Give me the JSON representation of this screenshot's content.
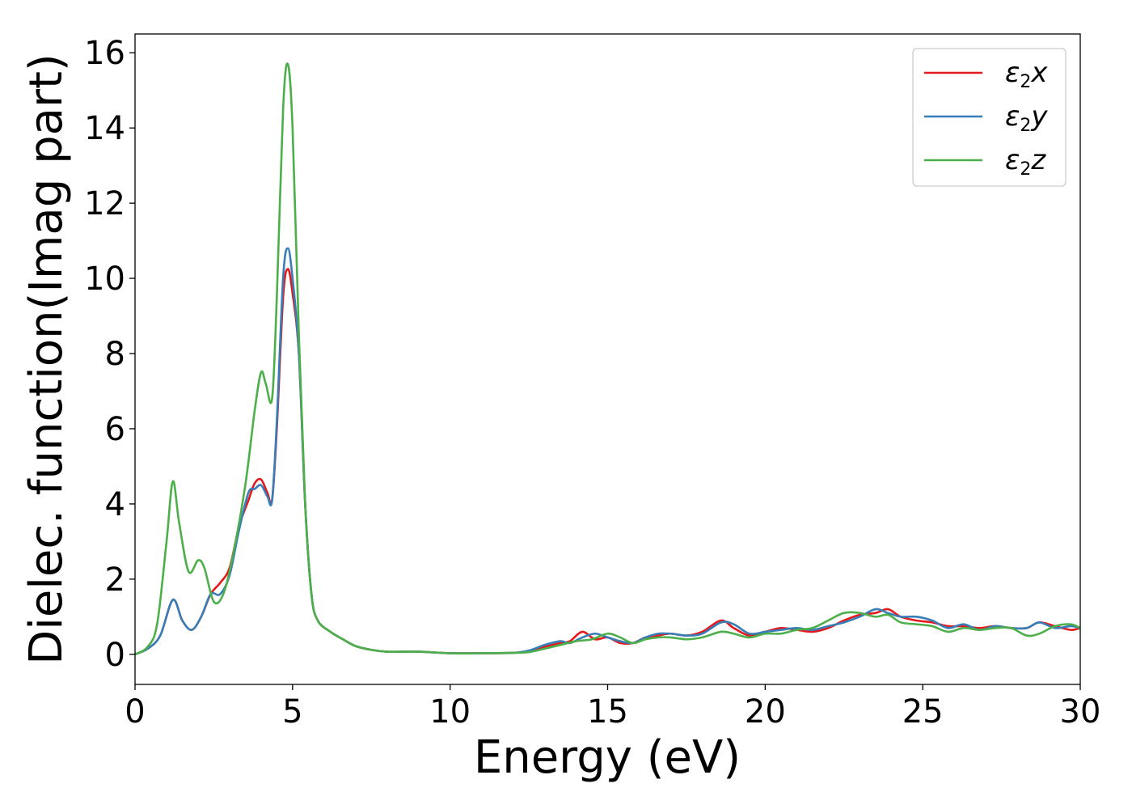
{
  "chart_data": {
    "type": "line",
    "xlabel": "Energy (eV)",
    "ylabel": "Dielec. function(Imag part)",
    "xlim": [
      0,
      30
    ],
    "ylim": [
      -0.8,
      16.5
    ],
    "xticks": [
      0,
      5,
      10,
      15,
      20,
      25,
      30
    ],
    "yticks": [
      0,
      2,
      4,
      6,
      8,
      10,
      12,
      14,
      16
    ],
    "grid": false,
    "legend_position": "top-right",
    "series": [
      {
        "name": "ε2x",
        "legend_symbol": "ε",
        "legend_sub": "2",
        "legend_var": "x",
        "color": "#e41a1c",
        "x": [
          0,
          0.4,
          0.8,
          1.2,
          1.5,
          1.8,
          2.1,
          2.4,
          2.7,
          3.0,
          3.3,
          3.6,
          3.8,
          4.0,
          4.2,
          4.35,
          4.5,
          4.7,
          4.85,
          5.0,
          5.2,
          5.4,
          5.6,
          5.8,
          6.2,
          6.6,
          7.0,
          7.5,
          8.0,
          9.0,
          10.0,
          11.0,
          12.0,
          12.5,
          13.0,
          13.5,
          13.8,
          14.2,
          14.6,
          15.0,
          15.4,
          15.8,
          16.2,
          16.6,
          17.0,
          17.5,
          18.0,
          18.6,
          19.0,
          19.5,
          20.0,
          20.5,
          21.0,
          21.5,
          22.0,
          22.5,
          23.0,
          23.5,
          23.9,
          24.3,
          24.8,
          25.3,
          25.8,
          26.3,
          26.8,
          27.3,
          27.8,
          28.3,
          28.7,
          29.2,
          29.7,
          30.0
        ],
        "y": [
          0.0,
          0.15,
          0.5,
          1.45,
          0.9,
          0.65,
          1.0,
          1.6,
          1.9,
          2.3,
          3.4,
          4.1,
          4.55,
          4.65,
          4.3,
          4.1,
          6.0,
          9.5,
          10.25,
          9.6,
          8.0,
          4.0,
          1.6,
          0.9,
          0.6,
          0.4,
          0.22,
          0.12,
          0.07,
          0.07,
          0.03,
          0.03,
          0.04,
          0.08,
          0.2,
          0.3,
          0.35,
          0.6,
          0.4,
          0.45,
          0.3,
          0.3,
          0.45,
          0.5,
          0.55,
          0.5,
          0.6,
          0.9,
          0.7,
          0.5,
          0.6,
          0.7,
          0.65,
          0.6,
          0.7,
          0.9,
          1.05,
          1.1,
          1.2,
          1.0,
          0.9,
          0.85,
          0.75,
          0.75,
          0.7,
          0.75,
          0.7,
          0.7,
          0.85,
          0.75,
          0.65,
          0.7
        ]
      },
      {
        "name": "ε2y",
        "legend_symbol": "ε",
        "legend_sub": "2",
        "legend_var": "y",
        "color": "#377eb8",
        "x": [
          0,
          0.4,
          0.8,
          1.2,
          1.5,
          1.8,
          2.1,
          2.4,
          2.7,
          3.0,
          3.3,
          3.6,
          3.8,
          4.0,
          4.2,
          4.35,
          4.5,
          4.7,
          4.85,
          5.0,
          5.2,
          5.4,
          5.6,
          5.8,
          6.2,
          6.6,
          7.0,
          7.5,
          8.0,
          9.0,
          10.0,
          11.0,
          12.0,
          12.5,
          13.0,
          13.5,
          13.8,
          14.2,
          14.6,
          15.0,
          15.4,
          15.8,
          16.2,
          16.6,
          17.0,
          17.5,
          18.0,
          18.6,
          19.0,
          19.5,
          20.0,
          20.5,
          21.0,
          21.5,
          22.0,
          22.5,
          23.0,
          23.5,
          23.9,
          24.3,
          24.8,
          25.3,
          25.8,
          26.3,
          26.8,
          27.3,
          27.8,
          28.3,
          28.7,
          29.2,
          29.7,
          30.0
        ],
        "y": [
          0.0,
          0.15,
          0.5,
          1.45,
          0.9,
          0.65,
          1.0,
          1.6,
          1.6,
          2.1,
          3.3,
          4.3,
          4.4,
          4.5,
          4.2,
          4.1,
          6.2,
          10.0,
          10.8,
          10.0,
          8.0,
          4.0,
          1.6,
          0.9,
          0.6,
          0.4,
          0.22,
          0.12,
          0.07,
          0.07,
          0.03,
          0.03,
          0.04,
          0.1,
          0.25,
          0.35,
          0.3,
          0.45,
          0.55,
          0.45,
          0.35,
          0.3,
          0.45,
          0.55,
          0.55,
          0.5,
          0.55,
          0.85,
          0.8,
          0.55,
          0.6,
          0.65,
          0.7,
          0.65,
          0.75,
          0.85,
          1.0,
          1.2,
          1.1,
          1.0,
          1.0,
          0.9,
          0.7,
          0.8,
          0.65,
          0.75,
          0.7,
          0.7,
          0.85,
          0.7,
          0.75,
          0.7
        ]
      },
      {
        "name": "ε2z",
        "legend_symbol": "ε",
        "legend_sub": "2",
        "legend_var": "z",
        "color": "#4daf4a",
        "x": [
          0,
          0.4,
          0.7,
          1.0,
          1.2,
          1.4,
          1.7,
          2.0,
          2.2,
          2.5,
          2.8,
          3.1,
          3.5,
          3.8,
          4.0,
          4.15,
          4.35,
          4.5,
          4.7,
          4.85,
          5.0,
          5.2,
          5.4,
          5.6,
          5.8,
          6.2,
          6.6,
          7.0,
          7.5,
          8.0,
          9.0,
          10.0,
          11.0,
          12.0,
          12.5,
          13.0,
          13.5,
          14.0,
          14.5,
          15.0,
          15.4,
          15.8,
          16.2,
          16.6,
          17.0,
          17.5,
          18.0,
          18.6,
          19.0,
          19.5,
          20.0,
          20.5,
          21.0,
          21.5,
          22.0,
          22.5,
          23.0,
          23.5,
          23.9,
          24.3,
          24.8,
          25.3,
          25.8,
          26.3,
          26.8,
          27.3,
          27.8,
          28.3,
          28.7,
          29.2,
          29.7,
          30.0
        ],
        "y": [
          0.0,
          0.2,
          0.8,
          3.0,
          4.6,
          3.5,
          2.2,
          2.5,
          2.3,
          1.4,
          1.6,
          2.6,
          4.5,
          6.5,
          7.5,
          7.2,
          6.8,
          9.5,
          14.5,
          15.7,
          14.0,
          8.5,
          4.0,
          1.6,
          0.9,
          0.6,
          0.4,
          0.22,
          0.12,
          0.07,
          0.07,
          0.03,
          0.03,
          0.04,
          0.06,
          0.15,
          0.25,
          0.35,
          0.4,
          0.55,
          0.45,
          0.3,
          0.4,
          0.45,
          0.45,
          0.4,
          0.45,
          0.6,
          0.55,
          0.45,
          0.55,
          0.55,
          0.65,
          0.7,
          0.9,
          1.1,
          1.1,
          1.0,
          1.05,
          0.85,
          0.8,
          0.75,
          0.6,
          0.7,
          0.65,
          0.7,
          0.7,
          0.5,
          0.55,
          0.75,
          0.8,
          0.7
        ]
      }
    ]
  }
}
